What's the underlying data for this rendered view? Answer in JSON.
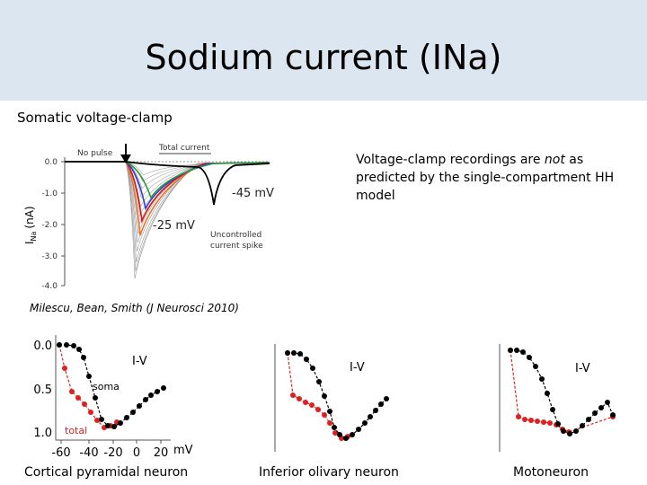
{
  "slide": {
    "title": "Sodium current (INa)",
    "subtitle": "Somatic voltage-clamp",
    "note_parts": [
      "Voltage-clamp recordings are ",
      "not",
      " as predicted by the single-compartment HH model"
    ],
    "citation": "Milescu, Bean, Smith (J Neurosci 2010)"
  },
  "trace_plot": {
    "ylabel_main": "I",
    "ylabel_sub": "Na",
    "ylabel_unit": "(nA)",
    "yticks": [
      "0.0",
      "-1.0",
      "-2.0",
      "-3.0",
      "-4.0"
    ],
    "label_no_pulse": "No pulse",
    "label_total_current": "Total current",
    "label_spike_line1": "Uncontrolled",
    "label_spike_line2": "current spike",
    "label_minus45": "-45 mV",
    "label_minus25": "-25 mV",
    "trace_colors": [
      "#e8732a",
      "#d81b1b",
      "#2a3fd0",
      "#2e9a3a",
      "#000000"
    ]
  },
  "iv_panels": [
    {
      "label": "Cortical pyramidal neuron",
      "iv_label": "I-V",
      "soma_label": "soma",
      "total_label": "total",
      "yticks": [
        "0.0",
        "0.5",
        "1.0"
      ],
      "xticks": [
        "-60",
        "-40",
        "-20",
        "0",
        "20"
      ],
      "xunit": "mV"
    },
    {
      "label": "Inferior olivary neuron",
      "iv_label": "I-V"
    },
    {
      "label": "Motoneuron",
      "iv_label": "I-V"
    }
  ],
  "colors": {
    "soma": "#000000",
    "total": "#e02020",
    "header_bg": "#dce6f1"
  }
}
